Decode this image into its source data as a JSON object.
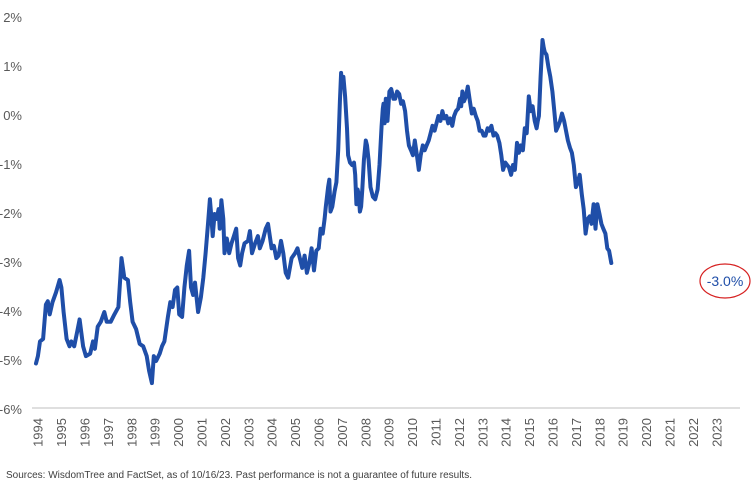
{
  "chart_data": {
    "type": "line",
    "title": "",
    "xlabel": "",
    "ylabel": "",
    "ylim": [
      -6,
      2
    ],
    "xlim": [
      1994.0,
      2023.8
    ],
    "y_ticks": [
      "2%",
      "1%",
      "0%",
      "-1%",
      "-2%",
      "-3%",
      "-4%",
      "-5%",
      "-6%"
    ],
    "x_ticks": [
      "1994",
      "1995",
      "1996",
      "1997",
      "1998",
      "1999",
      "2000",
      "2001",
      "2002",
      "2003",
      "2004",
      "2005",
      "2006",
      "2007",
      "2008",
      "2009",
      "2010",
      "2011",
      "2012",
      "2013",
      "2014",
      "2015",
      "2016",
      "2017",
      "2018",
      "2019",
      "2020",
      "2021",
      "2022",
      "2023"
    ],
    "grid": false,
    "legend": "none",
    "line_color": "#1f4ea8",
    "annotation": {
      "text": "-3.0%",
      "x": 2023.6,
      "y": -3.0,
      "circle_color": "#d62020"
    },
    "series": [
      {
        "points": [
          [
            1994.0,
            -5.05
          ],
          [
            1994.08,
            -4.9
          ],
          [
            1994.17,
            -4.6
          ],
          [
            1994.3,
            -4.55
          ],
          [
            1994.42,
            -3.85
          ],
          [
            1994.5,
            -3.78
          ],
          [
            1994.58,
            -4.05
          ],
          [
            1994.7,
            -3.8
          ],
          [
            1994.85,
            -3.6
          ],
          [
            1995.0,
            -3.35
          ],
          [
            1995.08,
            -3.5
          ],
          [
            1995.17,
            -4.0
          ],
          [
            1995.3,
            -4.55
          ],
          [
            1995.42,
            -4.7
          ],
          [
            1995.5,
            -4.6
          ],
          [
            1995.62,
            -4.7
          ],
          [
            1995.75,
            -4.4
          ],
          [
            1995.85,
            -4.15
          ],
          [
            1996.0,
            -4.7
          ],
          [
            1996.12,
            -4.9
          ],
          [
            1996.3,
            -4.85
          ],
          [
            1996.42,
            -4.6
          ],
          [
            1996.5,
            -4.75
          ],
          [
            1996.62,
            -4.3
          ],
          [
            1996.75,
            -4.2
          ],
          [
            1996.9,
            -4.0
          ],
          [
            1997.0,
            -4.2
          ],
          [
            1997.17,
            -4.2
          ],
          [
            1997.33,
            -4.05
          ],
          [
            1997.5,
            -3.9
          ],
          [
            1997.58,
            -3.3
          ],
          [
            1997.63,
            -2.9
          ],
          [
            1997.75,
            -3.3
          ],
          [
            1997.9,
            -3.35
          ],
          [
            1998.0,
            -3.8
          ],
          [
            1998.1,
            -4.2
          ],
          [
            1998.25,
            -4.35
          ],
          [
            1998.4,
            -4.65
          ],
          [
            1998.55,
            -4.7
          ],
          [
            1998.7,
            -4.9
          ],
          [
            1998.8,
            -5.2
          ],
          [
            1998.92,
            -5.45
          ],
          [
            1999.0,
            -4.9
          ],
          [
            1999.1,
            -5.0
          ],
          [
            1999.25,
            -4.85
          ],
          [
            1999.35,
            -4.7
          ],
          [
            1999.45,
            -4.6
          ],
          [
            1999.6,
            -4.1
          ],
          [
            1999.7,
            -3.8
          ],
          [
            1999.8,
            -3.9
          ],
          [
            1999.9,
            -3.55
          ],
          [
            2000.0,
            -3.5
          ],
          [
            2000.08,
            -4.05
          ],
          [
            2000.2,
            -4.1
          ],
          [
            2000.3,
            -3.5
          ],
          [
            2000.4,
            -3.05
          ],
          [
            2000.5,
            -2.75
          ],
          [
            2000.58,
            -3.5
          ],
          [
            2000.67,
            -3.65
          ],
          [
            2000.75,
            -3.4
          ],
          [
            2000.88,
            -4.0
          ],
          [
            2001.0,
            -3.7
          ],
          [
            2001.1,
            -3.3
          ],
          [
            2001.2,
            -2.8
          ],
          [
            2001.3,
            -2.2
          ],
          [
            2001.38,
            -1.7
          ],
          [
            2001.45,
            -2.1
          ],
          [
            2001.5,
            -2.45
          ],
          [
            2001.58,
            -2.0
          ],
          [
            2001.67,
            -2.1
          ],
          [
            2001.75,
            -1.9
          ],
          [
            2001.8,
            -2.3
          ],
          [
            2001.87,
            -1.72
          ],
          [
            2001.95,
            -2.1
          ],
          [
            2002.0,
            -2.8
          ],
          [
            2002.1,
            -2.5
          ],
          [
            2002.2,
            -2.8
          ],
          [
            2002.3,
            -2.6
          ],
          [
            2002.4,
            -2.45
          ],
          [
            2002.5,
            -2.3
          ],
          [
            2002.58,
            -2.9
          ],
          [
            2002.67,
            -3.05
          ],
          [
            2002.75,
            -2.8
          ],
          [
            2002.85,
            -2.6
          ],
          [
            2003.0,
            -2.55
          ],
          [
            2003.08,
            -2.35
          ],
          [
            2003.17,
            -2.8
          ],
          [
            2003.3,
            -2.6
          ],
          [
            2003.42,
            -2.45
          ],
          [
            2003.5,
            -2.7
          ],
          [
            2003.62,
            -2.55
          ],
          [
            2003.75,
            -2.3
          ],
          [
            2003.85,
            -2.2
          ],
          [
            2004.0,
            -2.7
          ],
          [
            2004.1,
            -2.65
          ],
          [
            2004.2,
            -2.9
          ],
          [
            2004.3,
            -2.85
          ],
          [
            2004.4,
            -2.55
          ],
          [
            2004.5,
            -2.8
          ],
          [
            2004.6,
            -3.2
          ],
          [
            2004.7,
            -3.3
          ],
          [
            2004.85,
            -2.9
          ],
          [
            2005.0,
            -2.8
          ],
          [
            2005.1,
            -2.7
          ],
          [
            2005.2,
            -2.9
          ],
          [
            2005.3,
            -3.1
          ],
          [
            2005.4,
            -2.85
          ],
          [
            2005.5,
            -3.2
          ],
          [
            2005.6,
            -3.0
          ],
          [
            2005.7,
            -2.7
          ],
          [
            2005.8,
            -3.15
          ],
          [
            2005.9,
            -2.75
          ],
          [
            2006.0,
            -2.7
          ],
          [
            2006.08,
            -2.3
          ],
          [
            2006.17,
            -2.4
          ],
          [
            2006.25,
            -2.1
          ],
          [
            2006.3,
            -1.85
          ],
          [
            2006.4,
            -1.45
          ],
          [
            2006.45,
            -1.3
          ],
          [
            2006.5,
            -1.95
          ],
          [
            2006.58,
            -1.85
          ],
          [
            2006.67,
            -1.55
          ],
          [
            2006.75,
            -1.35
          ],
          [
            2006.83,
            -0.7
          ],
          [
            2006.9,
            0.3
          ],
          [
            2006.95,
            0.88
          ],
          [
            2007.0,
            0.6
          ],
          [
            2007.05,
            0.8
          ],
          [
            2007.12,
            0.4
          ],
          [
            2007.2,
            -0.25
          ],
          [
            2007.25,
            -0.8
          ],
          [
            2007.33,
            -0.95
          ],
          [
            2007.42,
            -1.0
          ],
          [
            2007.5,
            -0.95
          ],
          [
            2007.55,
            -1.2
          ],
          [
            2007.6,
            -1.8
          ],
          [
            2007.65,
            -1.5
          ],
          [
            2007.7,
            -1.6
          ],
          [
            2007.75,
            -1.95
          ],
          [
            2007.8,
            -1.85
          ],
          [
            2007.85,
            -1.5
          ],
          [
            2007.92,
            -0.9
          ],
          [
            2008.0,
            -0.5
          ],
          [
            2008.05,
            -0.6
          ],
          [
            2008.12,
            -0.9
          ],
          [
            2008.2,
            -1.45
          ],
          [
            2008.3,
            -1.65
          ],
          [
            2008.4,
            -1.7
          ],
          [
            2008.5,
            -1.5
          ],
          [
            2008.58,
            -1.0
          ],
          [
            2008.67,
            -0.2
          ],
          [
            2008.72,
            0.15
          ],
          [
            2008.75,
            0.25
          ],
          [
            2008.8,
            -0.15
          ],
          [
            2008.85,
            0.35
          ],
          [
            2008.92,
            -0.1
          ],
          [
            2009.0,
            0.5
          ],
          [
            2009.08,
            0.55
          ],
          [
            2009.17,
            0.35
          ],
          [
            2009.25,
            0.35
          ],
          [
            2009.33,
            0.5
          ],
          [
            2009.42,
            0.45
          ],
          [
            2009.5,
            0.25
          ],
          [
            2009.58,
            0.3
          ],
          [
            2009.67,
            0.1
          ],
          [
            2009.75,
            -0.3
          ],
          [
            2009.83,
            -0.6
          ],
          [
            2009.92,
            -0.7
          ],
          [
            2010.0,
            -0.8
          ],
          [
            2010.08,
            -0.5
          ],
          [
            2010.17,
            -0.8
          ],
          [
            2010.25,
            -1.1
          ],
          [
            2010.33,
            -0.8
          ],
          [
            2010.42,
            -0.6
          ],
          [
            2010.5,
            -0.7
          ],
          [
            2010.58,
            -0.6
          ],
          [
            2010.67,
            -0.5
          ],
          [
            2010.75,
            -0.35
          ],
          [
            2010.83,
            -0.2
          ],
          [
            2010.92,
            -0.3
          ],
          [
            2011.0,
            -0.15
          ],
          [
            2011.08,
            0.0
          ],
          [
            2011.17,
            -0.1
          ],
          [
            2011.25,
            0.1
          ],
          [
            2011.33,
            -0.05
          ],
          [
            2011.42,
            0.0
          ],
          [
            2011.5,
            -0.15
          ],
          [
            2011.58,
            -0.05
          ],
          [
            2011.67,
            -0.2
          ],
          [
            2011.75,
            0.0
          ],
          [
            2011.83,
            0.1
          ],
          [
            2011.92,
            0.15
          ],
          [
            2012.0,
            0.35
          ],
          [
            2012.05,
            0.2
          ],
          [
            2012.1,
            0.5
          ],
          [
            2012.17,
            0.3
          ],
          [
            2012.25,
            0.4
          ],
          [
            2012.33,
            0.6
          ],
          [
            2012.42,
            0.3
          ],
          [
            2012.5,
            0.05
          ],
          [
            2012.58,
            0.15
          ],
          [
            2012.67,
            0.0
          ],
          [
            2012.75,
            -0.1
          ],
          [
            2012.83,
            -0.3
          ],
          [
            2012.92,
            -0.3
          ],
          [
            2013.0,
            -0.4
          ],
          [
            2013.08,
            -0.4
          ],
          [
            2013.17,
            -0.25
          ],
          [
            2013.25,
            -0.3
          ],
          [
            2013.33,
            -0.2
          ],
          [
            2013.42,
            -0.4
          ],
          [
            2013.5,
            -0.35
          ],
          [
            2013.58,
            -0.4
          ],
          [
            2013.67,
            -0.55
          ],
          [
            2013.75,
            -0.8
          ],
          [
            2013.83,
            -1.1
          ],
          [
            2013.92,
            -0.95
          ],
          [
            2014.0,
            -1.0
          ],
          [
            2014.08,
            -1.05
          ],
          [
            2014.17,
            -1.2
          ],
          [
            2014.25,
            -1.0
          ],
          [
            2014.33,
            -1.1
          ],
          [
            2014.42,
            -0.55
          ],
          [
            2014.5,
            -0.75
          ],
          [
            2014.58,
            -0.6
          ],
          [
            2014.67,
            -0.7
          ],
          [
            2014.75,
            -0.25
          ],
          [
            2014.83,
            -0.35
          ],
          [
            2014.92,
            0.4
          ],
          [
            2015.0,
            0.1
          ],
          [
            2015.08,
            0.2
          ],
          [
            2015.17,
            -0.1
          ],
          [
            2015.25,
            -0.25
          ],
          [
            2015.3,
            -0.1
          ],
          [
            2015.35,
            0.0
          ],
          [
            2015.42,
            0.8
          ],
          [
            2015.5,
            1.55
          ],
          [
            2015.55,
            1.4
          ],
          [
            2015.6,
            1.3
          ],
          [
            2015.67,
            1.25
          ],
          [
            2015.75,
            1.0
          ],
          [
            2015.83,
            0.8
          ],
          [
            2015.92,
            0.5
          ],
          [
            2016.0,
            0.1
          ],
          [
            2016.08,
            -0.3
          ],
          [
            2016.17,
            -0.2
          ],
          [
            2016.25,
            -0.1
          ],
          [
            2016.33,
            0.05
          ],
          [
            2016.42,
            -0.1
          ],
          [
            2016.5,
            -0.3
          ],
          [
            2016.58,
            -0.5
          ],
          [
            2016.67,
            -0.65
          ],
          [
            2016.75,
            -0.75
          ],
          [
            2016.83,
            -1.0
          ],
          [
            2016.92,
            -1.45
          ],
          [
            2017.0,
            -1.35
          ],
          [
            2017.08,
            -1.2
          ],
          [
            2017.17,
            -1.6
          ],
          [
            2017.25,
            -1.9
          ],
          [
            2017.33,
            -2.4
          ],
          [
            2017.42,
            -2.1
          ],
          [
            2017.5,
            -2.05
          ],
          [
            2017.58,
            -2.2
          ],
          [
            2017.67,
            -1.8
          ],
          [
            2017.75,
            -2.3
          ],
          [
            2017.83,
            -1.8
          ],
          [
            2017.92,
            -2.0
          ],
          [
            2018.0,
            -2.2
          ],
          [
            2018.08,
            -2.3
          ],
          [
            2018.17,
            -2.4
          ],
          [
            2018.25,
            -2.7
          ],
          [
            2018.33,
            -2.75
          ],
          [
            2018.42,
            -3.0
          ]
        ]
      }
    ]
  },
  "footer": {
    "source": "Sources: WisdomTree and FactSet, as of 10/16/23. Past performance is not a guarantee of future results."
  }
}
